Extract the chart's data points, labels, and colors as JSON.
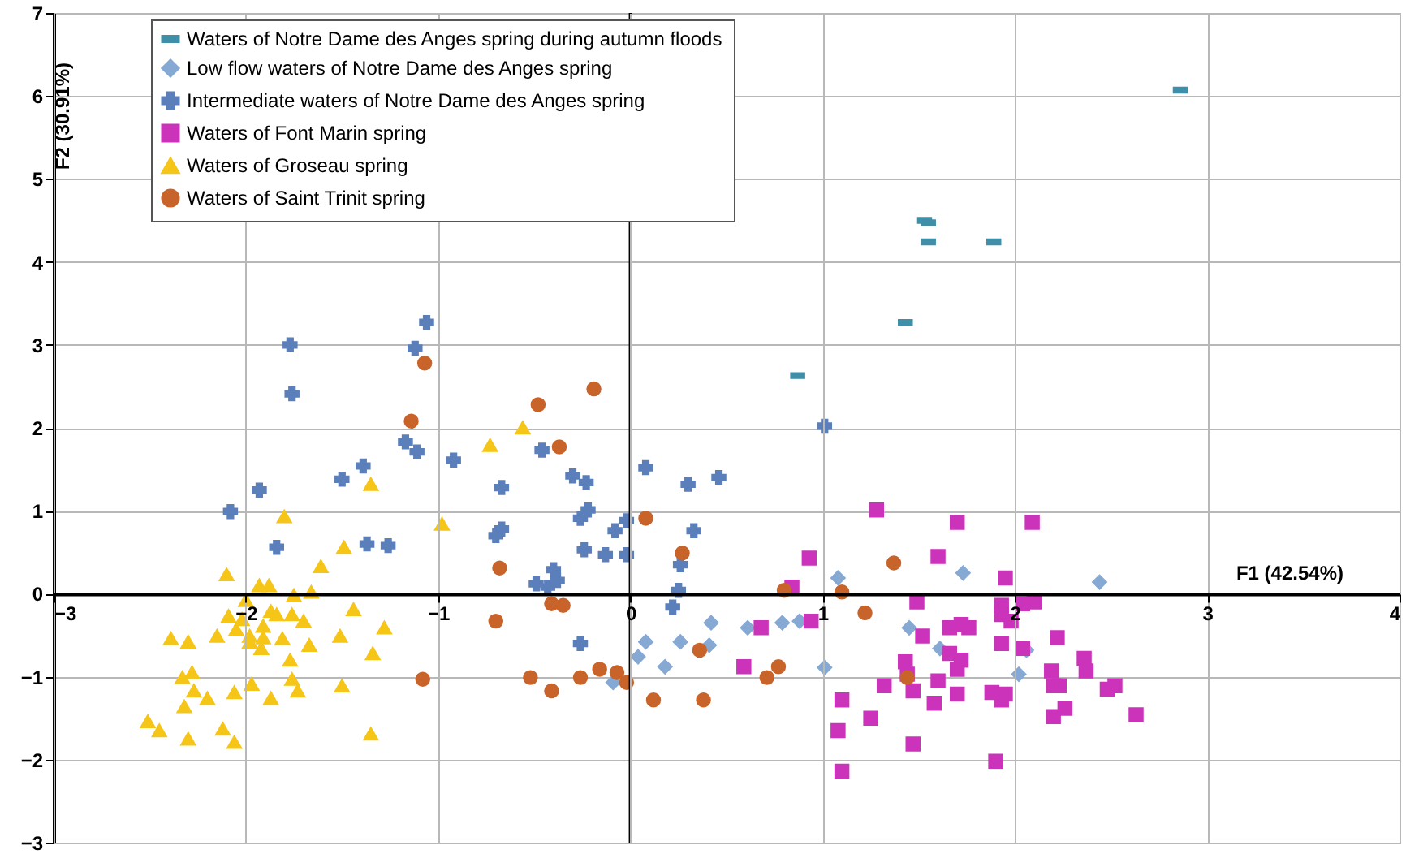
{
  "chart_data": {
    "type": "scatter",
    "xlabel": "F1 (42.54%)",
    "ylabel": "F2 (30.91%)",
    "xlim": [
      -3,
      4
    ],
    "xticks": [
      -3,
      -2,
      -1,
      0,
      1,
      2,
      3,
      4
    ],
    "ylim": [
      -3,
      7
    ],
    "yticks": [
      -3,
      -2,
      -1,
      0,
      1,
      2,
      3,
      4,
      5,
      6,
      7
    ],
    "grid": true,
    "legend": "top left",
    "ref_lines": [
      {
        "axis": "x",
        "value": 0,
        "color": "#000000"
      }
    ],
    "series": [
      {
        "name": "Waters of Notre Dame des Anges spring during autumn floods",
        "color": "#3f8fa8",
        "x": [
          2.86,
          1.53,
          1.55,
          1.55,
          1.89,
          1.43,
          0.87
        ],
        "values": [
          6.07,
          4.5,
          4.47,
          4.24,
          4.24,
          3.27,
          2.63
        ]
      },
      {
        "name": "Low flow waters of Notre Dame des Anges spring",
        "color": "#86a9d4",
        "marker": "diamond",
        "x": [
          0.08,
          0.04,
          -0.09,
          0.42,
          0.61,
          0.79,
          0.88,
          0.26,
          0.41,
          0.18,
          1.01,
          1.08,
          1.45,
          1.73,
          2.44,
          1.61,
          2.06,
          2.02
        ],
        "values": [
          -0.58,
          -0.76,
          -1.07,
          -0.35,
          -0.41,
          -0.35,
          -0.33,
          -0.58,
          -0.62,
          -0.88,
          -0.89,
          0.19,
          -0.41,
          0.25,
          0.14,
          -0.66,
          -0.68,
          -0.97
        ]
      },
      {
        "name": "Intermediate waters of Notre Dame des Anges spring",
        "color": "#5b7fba",
        "marker": "cross",
        "x": [
          -1.77,
          -1.76,
          -1.93,
          -2.08,
          -1.5,
          -1.39,
          -1.84,
          -1.37,
          -1.26,
          -1.17,
          -1.06,
          -1.12,
          -1.11,
          -0.92,
          -0.67,
          -0.46,
          -0.3,
          -0.23,
          -0.26,
          -0.22,
          -0.7,
          -0.67,
          -0.24,
          -0.13,
          -0.08,
          -0.02,
          -0.02,
          -0.4,
          -0.49,
          -0.38,
          -0.43,
          -0.26,
          0.08,
          1.01,
          0.3,
          0.46,
          0.33,
          0.26,
          0.25,
          0.22
        ],
        "values": [
          3.0,
          2.41,
          1.25,
          0.99,
          1.38,
          1.54,
          0.56,
          0.6,
          0.58,
          1.83,
          3.27,
          2.96,
          1.71,
          1.61,
          1.28,
          1.73,
          1.42,
          1.34,
          0.91,
          1.01,
          0.7,
          0.78,
          0.53,
          0.47,
          0.76,
          0.88,
          0.47,
          0.29,
          0.12,
          0.16,
          0.08,
          -0.6,
          1.52,
          2.02,
          1.32,
          1.4,
          0.76,
          0.35,
          0.04,
          -0.16
        ]
      },
      {
        "name": "Waters of Font Marin spring",
        "color": "#cc33bb",
        "marker": "square",
        "x": [
          1.28,
          0.93,
          0.84,
          0.68,
          0.94,
          0.59,
          1.1,
          1.32,
          1.25,
          1.08,
          1.1,
          1.43,
          1.44,
          1.7,
          2.09,
          1.6,
          1.95,
          1.49,
          1.93,
          2.04,
          2.1,
          1.93,
          1.98,
          1.52,
          1.66,
          1.72,
          1.76,
          1.93,
          2.04,
          2.22,
          1.66,
          1.72,
          1.7,
          1.47,
          1.6,
          2.19,
          2.36,
          2.37,
          1.7,
          1.88,
          1.95,
          1.93,
          1.58,
          2.2,
          2.23,
          2.48,
          2.52,
          2.26,
          2.2,
          2.63,
          1.47,
          1.9
        ],
        "values": [
          1.01,
          0.43,
          0.08,
          -0.41,
          -0.33,
          -0.88,
          -1.28,
          -1.11,
          -1.5,
          -1.65,
          -2.14,
          -0.82,
          -0.97,
          0.86,
          0.86,
          0.45,
          0.19,
          -0.1,
          -0.14,
          -0.12,
          -0.1,
          -0.25,
          -0.33,
          -0.51,
          -0.41,
          -0.37,
          -0.41,
          -0.6,
          -0.66,
          -0.53,
          -0.72,
          -0.8,
          -0.91,
          -1.17,
          -1.05,
          -0.93,
          -0.78,
          -0.93,
          -1.21,
          -1.19,
          -1.21,
          -1.28,
          -1.32,
          -1.11,
          -1.11,
          -1.15,
          -1.11,
          -1.38,
          -1.48,
          -1.46,
          -1.81,
          -2.02
        ]
      },
      {
        "name": "Waters of Groseau spring",
        "color": "#f5c518",
        "marker": "triangle",
        "x": [
          -1.35,
          -1.8,
          -1.49,
          -1.61,
          -2.1,
          -1.93,
          -1.88,
          -1.75,
          -1.66,
          -2.0,
          -2.09,
          -1.87,
          -1.84,
          -1.76,
          -1.7,
          -1.44,
          -1.28,
          -2.02,
          -2.05,
          -1.91,
          -2.15,
          -1.98,
          -1.91,
          -1.81,
          -1.51,
          -2.39,
          -2.3,
          -1.98,
          -1.92,
          -1.67,
          -1.34,
          -1.77,
          -2.33,
          -2.28,
          -1.76,
          -2.06,
          -2.27,
          -2.2,
          -1.97,
          -1.87,
          -1.73,
          -1.5,
          -2.32,
          -2.51,
          -2.45,
          -2.12,
          -2.3,
          -2.06,
          -1.35,
          -0.73,
          -0.56,
          -0.98
        ],
        "values": [
          1.32,
          0.93,
          0.56,
          0.33,
          0.23,
          0.1,
          0.1,
          -0.02,
          0.02,
          -0.08,
          -0.27,
          -0.21,
          -0.25,
          -0.25,
          -0.33,
          -0.19,
          -0.41,
          -0.31,
          -0.43,
          -0.39,
          -0.51,
          -0.51,
          -0.53,
          -0.54,
          -0.51,
          -0.54,
          -0.58,
          -0.58,
          -0.66,
          -0.62,
          -0.72,
          -0.8,
          -1.01,
          -0.95,
          -1.03,
          -1.19,
          -1.17,
          -1.26,
          -1.09,
          -1.26,
          -1.17,
          -1.11,
          -1.36,
          -1.54,
          -1.65,
          -1.63,
          -1.75,
          -1.79,
          -1.69,
          1.79,
          2.0,
          0.84
        ]
      },
      {
        "name": "Waters of Saint Trinit spring",
        "color": "#c8642a",
        "marker": "circle",
        "x": [
          -1.07,
          -0.19,
          -0.48,
          -1.14,
          -0.37,
          -0.68,
          -0.41,
          -0.35,
          -0.7,
          -1.08,
          -0.52,
          -0.41,
          -0.26,
          -0.16,
          -0.07,
          -0.02,
          0.08,
          0.27,
          0.8,
          1.1,
          1.37,
          1.22,
          0.36,
          0.77,
          0.71,
          0.12,
          0.38,
          1.44
        ],
        "values": [
          2.78,
          2.47,
          2.28,
          2.08,
          1.77,
          0.31,
          -0.12,
          -0.14,
          -0.33,
          -1.03,
          -1.01,
          -1.17,
          -1.01,
          -0.91,
          -0.95,
          -1.07,
          0.91,
          0.49,
          0.04,
          0.02,
          0.37,
          -0.23,
          -0.68,
          -0.88,
          -1.01,
          -1.28,
          -1.28,
          -1.01
        ]
      }
    ]
  }
}
